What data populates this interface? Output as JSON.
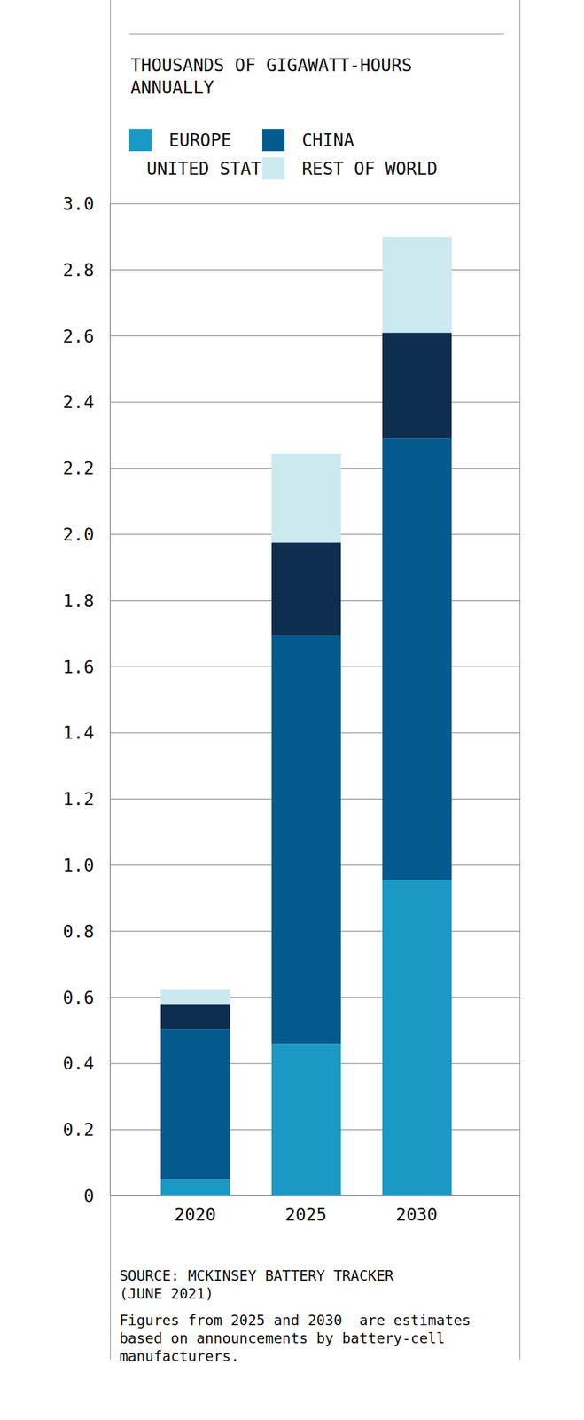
{
  "chart_data": {
    "type": "bar",
    "title": "THOUSANDS OF GIGAWATT-HOURS ANNUALLY",
    "categories": [
      "2020",
      "2025",
      "2030"
    ],
    "series": [
      {
        "name": "EUROPE",
        "color": "#1b98c4",
        "values": [
          0.05,
          0.46,
          0.955
        ]
      },
      {
        "name": "CHINA",
        "color": "#045a8d",
        "values": [
          0.455,
          1.235,
          1.335
        ]
      },
      {
        "name": "UNITED STATES",
        "color": "#0d2e4f",
        "values": [
          0.075,
          0.28,
          0.32
        ]
      },
      {
        "name": "REST OF WORLD",
        "color": "#cde9f0",
        "values": [
          0.045,
          0.27,
          0.29
        ]
      }
    ],
    "stacked": true,
    "grid": true,
    "legend": "top-left",
    "ylim": [
      0,
      3
    ],
    "yticks": [
      0,
      0.2,
      0.4,
      0.6,
      0.8,
      {
        "value": 1,
        "label": "1.0"
      },
      1.2,
      1.4,
      1.6,
      1.8,
      {
        "value": 2,
        "label": "2.0"
      },
      2.2,
      2.4,
      2.6,
      2.8,
      {
        "value": 3,
        "label": "3.0"
      }
    ],
    "source": "SOURCE: MCKINSEY BATTERY TRACKER (JUNE 2021)",
    "note": "Figures from 2025 and 2030  are estimates based on announcements by battery-cell manufacturers."
  }
}
